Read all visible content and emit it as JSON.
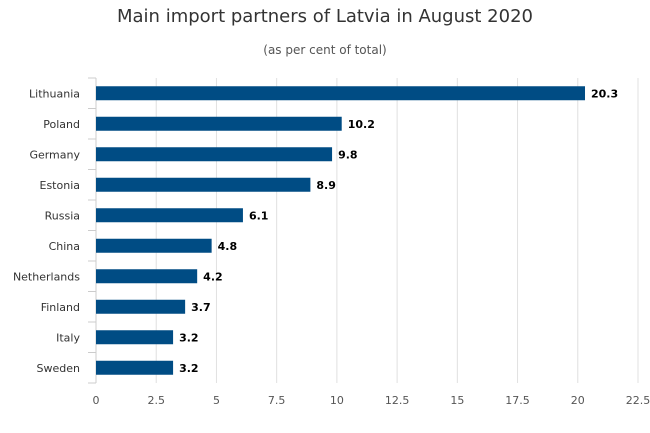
{
  "chart_data": {
    "type": "bar",
    "orientation": "horizontal",
    "title": "Main import partners of Latvia in August 2020",
    "subtitle": "(as per cent of total)",
    "categories": [
      "Lithuania",
      "Poland",
      "Germany",
      "Estonia",
      "Russia",
      "China",
      "Netherlands",
      "Finland",
      "Italy",
      "Sweden"
    ],
    "values": [
      20.3,
      10.2,
      9.8,
      8.9,
      6.1,
      4.8,
      4.2,
      3.7,
      3.2,
      3.2
    ],
    "value_labels": [
      "20.3",
      "10.2",
      "9.8",
      "8.9",
      "6.1",
      "4.8",
      "4.2",
      "3.7",
      "3.2",
      "3.2"
    ],
    "xlim": [
      0,
      22.5
    ],
    "x_ticks": [
      0,
      2.5,
      5,
      7.5,
      10,
      12.5,
      15,
      17.5,
      20,
      22.5
    ],
    "x_tick_labels": [
      "0",
      "2.5",
      "5",
      "7.5",
      "10",
      "12.5",
      "15",
      "17.5",
      "20",
      "22.5"
    ],
    "grid": "vertical",
    "bar_color": "#004c84",
    "grid_color": "#e0e0e0"
  }
}
